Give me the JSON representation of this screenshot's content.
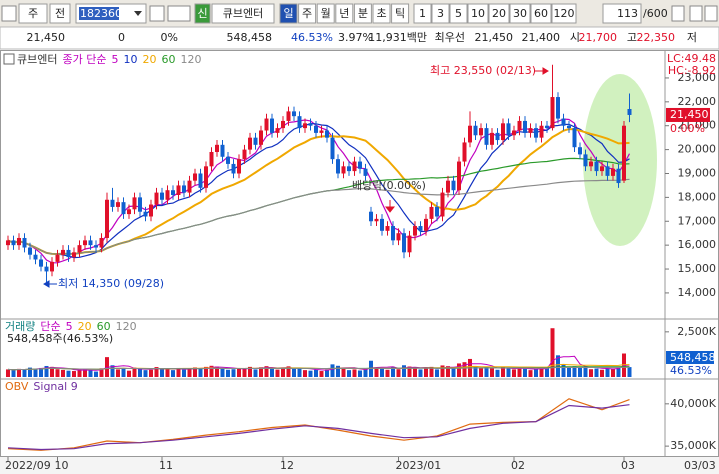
{
  "toolbar": {
    "market": "주",
    "kind": "전",
    "code": "182360",
    "flag": "신",
    "name": "큐브엔터",
    "periods": [
      "일",
      "주",
      "월",
      "년",
      "분",
      "초",
      "틱"
    ],
    "intervals": [
      1,
      3,
      5,
      10,
      20,
      30,
      60,
      120
    ],
    "count": 113,
    "max": "/600"
  },
  "quote": [
    "21,450",
    "0",
    "0%",
    "548,458",
    "46.53%",
    "3.97%",
    "11,931백만",
    "최우선",
    "21,450",
    "21,400",
    "시",
    "21,700",
    "고",
    "22,350",
    "저"
  ],
  "chart_data": [
    {
      "type": "candlestick",
      "title": "큐브엔터",
      "ma_label": "종가 단순",
      "ma_periods": [
        5,
        10,
        20,
        60,
        120
      ],
      "ma_colors": [
        "#c000c0",
        "#1030c0",
        "#f0a800",
        "#2a9a2a",
        "#8a8a8a"
      ],
      "up_color": "#e0102a",
      "down_color": "#1060d0",
      "open": [
        16000,
        16200,
        16000,
        16300,
        15900,
        15600,
        15400,
        15100,
        14900,
        15300,
        15600,
        15800,
        15500,
        15700,
        16000,
        16200,
        16000,
        15900,
        16300,
        17900,
        17600,
        17800,
        17300,
        17500,
        18000,
        17400,
        17200,
        17700,
        18200,
        17900,
        18300,
        18100,
        18500,
        18200,
        18700,
        19000,
        18400,
        19300,
        19900,
        20200,
        19700,
        19400,
        19000,
        19600,
        20000,
        20500,
        20200,
        20800,
        21300,
        20700,
        20900,
        21200,
        21600,
        21400,
        20900,
        21100,
        21000,
        20700,
        20800,
        20500,
        19600,
        19000,
        19300,
        19100,
        19500,
        19200,
        17400,
        17000,
        17100,
        16600,
        16800,
        16200,
        16500,
        15700,
        16400,
        16800,
        16600,
        17100,
        17600,
        17200,
        18200,
        18700,
        18300,
        19500,
        20300,
        21000,
        20600,
        20900,
        20200,
        20700,
        20400,
        21100,
        20600,
        20800,
        21200,
        20700,
        20900,
        20500,
        21000,
        20900,
        22200,
        21300,
        21000,
        20900,
        20100,
        19800,
        19300,
        19500,
        19100,
        19300,
        18900,
        19200,
        18700,
        21700
      ],
      "high": [
        16400,
        16400,
        16500,
        16500,
        16100,
        15800,
        15600,
        15300,
        15500,
        15800,
        16000,
        16000,
        15900,
        16200,
        16400,
        16400,
        16200,
        16500,
        18200,
        18400,
        18000,
        18000,
        17700,
        18200,
        18200,
        17600,
        17900,
        18400,
        18400,
        18500,
        18500,
        18700,
        18700,
        18900,
        19200,
        19200,
        19500,
        20100,
        20400,
        20400,
        19900,
        19600,
        19800,
        20200,
        20700,
        20700,
        21000,
        21500,
        21500,
        21100,
        21400,
        21800,
        21800,
        21600,
        21300,
        21300,
        21200,
        21000,
        21000,
        20700,
        19800,
        19500,
        19500,
        19700,
        19700,
        19400,
        17600,
        17300,
        17300,
        17000,
        17000,
        16700,
        16700,
        16600,
        17000,
        17000,
        17300,
        17800,
        17800,
        18400,
        18900,
        18900,
        19700,
        20500,
        21600,
        21200,
        21100,
        21100,
        20900,
        20900,
        21300,
        21300,
        21000,
        21400,
        21400,
        21100,
        21100,
        21200,
        21200,
        23550,
        22400,
        21500,
        21200,
        21100,
        20300,
        20000,
        19700,
        19700,
        19500,
        19500,
        19400,
        19400,
        21200,
        22350
      ],
      "low": [
        15800,
        15800,
        15800,
        15700,
        15400,
        15200,
        14900,
        14350,
        14700,
        15100,
        15400,
        15300,
        15300,
        15500,
        15800,
        15800,
        15700,
        15700,
        16100,
        17400,
        17400,
        17100,
        17100,
        17300,
        17200,
        17000,
        17000,
        17500,
        17700,
        17700,
        17900,
        17900,
        18000,
        18000,
        18500,
        18200,
        18200,
        19100,
        19700,
        19500,
        19200,
        18800,
        18800,
        19400,
        19800,
        20000,
        20000,
        20600,
        20500,
        20500,
        20700,
        21000,
        21200,
        20700,
        20700,
        20800,
        20500,
        20500,
        20300,
        19400,
        18800,
        18800,
        18900,
        18900,
        19000,
        18700,
        16800,
        16800,
        16400,
        16400,
        16000,
        16000,
        15450,
        15500,
        16200,
        16400,
        16400,
        16900,
        17000,
        17000,
        18000,
        18100,
        18100,
        19300,
        20100,
        20400,
        20400,
        20000,
        20000,
        20200,
        20200,
        20400,
        20400,
        20600,
        20500,
        20500,
        20300,
        20300,
        20700,
        20800,
        21100,
        20800,
        20700,
        19900,
        19600,
        19100,
        19100,
        18900,
        18900,
        18700,
        18700,
        18400,
        18600,
        21150
      ],
      "close": [
        16200,
        16000,
        16300,
        15900,
        15600,
        15400,
        15100,
        14900,
        15300,
        15600,
        15800,
        15500,
        15700,
        16000,
        16200,
        16000,
        15900,
        16300,
        17900,
        17600,
        17800,
        17300,
        17500,
        18000,
        17400,
        17200,
        17700,
        18200,
        17900,
        18300,
        18100,
        18500,
        18200,
        18700,
        19000,
        18400,
        19300,
        19900,
        20200,
        19700,
        19400,
        19000,
        19600,
        20000,
        20500,
        20200,
        20800,
        21300,
        20700,
        20900,
        21200,
        21600,
        21400,
        20900,
        21100,
        21000,
        20700,
        20800,
        20500,
        19600,
        19000,
        19300,
        19100,
        19500,
        19200,
        18900,
        17000,
        17100,
        16600,
        16800,
        16200,
        16500,
        15700,
        16400,
        16800,
        16600,
        17100,
        17600,
        17200,
        18200,
        18700,
        18300,
        19500,
        20300,
        21000,
        20600,
        20900,
        20200,
        20700,
        20400,
        21100,
        20600,
        20800,
        21200,
        20700,
        20900,
        20500,
        21000,
        20900,
        22200,
        21300,
        21000,
        20900,
        20100,
        19800,
        19300,
        19500,
        19100,
        19300,
        18900,
        19200,
        18600,
        21000,
        21450
      ],
      "ylim": [
        12950,
        24170
      ],
      "yticks": [
        {
          "value": 23000,
          "label": "23,000"
        },
        {
          "value": 22000,
          "label": "22,000"
        },
        {
          "value": 21000,
          "label": "21,000"
        },
        {
          "value": 20000,
          "label": "20,000"
        },
        {
          "value": 19000,
          "label": "19,000"
        },
        {
          "value": 18000,
          "label": "18,000"
        },
        {
          "value": 17000,
          "label": "17,000"
        },
        {
          "value": 16000,
          "label": "16,000"
        },
        {
          "value": 15000,
          "label": "15,000"
        },
        {
          "value": 14000,
          "label": "14,000"
        }
      ],
      "corner_labels": [
        "LC:49.48",
        "HC:-8.92"
      ],
      "last_label": "21,450",
      "change_label": "0.00%",
      "annotations": [
        "최고 23,550 (02/13)",
        "최저 14,350 (09/28)",
        "배당락(0.00%)"
      ]
    },
    {
      "type": "bar",
      "title": "거래량",
      "ma_label": "단순",
      "ma_periods": [
        5,
        20,
        60,
        120
      ],
      "ma_colors": [
        "#c000c0",
        "#f0a800",
        "#2a9a2a",
        "#8a8a8a"
      ],
      "subtitle": "548,458주(46.53%)",
      "values": [
        420000,
        380000,
        450000,
        400000,
        520000,
        470000,
        500000,
        610000,
        560000,
        430000,
        390000,
        350000,
        330000,
        410000,
        450000,
        360000,
        300000,
        480000,
        1100000,
        650000,
        420000,
        460000,
        350000,
        520000,
        470000,
        380000,
        400000,
        550000,
        420000,
        460000,
        380000,
        500000,
        410000,
        470000,
        530000,
        480000,
        560000,
        620000,
        580000,
        450000,
        400000,
        430000,
        470000,
        500000,
        560000,
        420000,
        540000,
        600000,
        520000,
        410000,
        480000,
        590000,
        450000,
        500000,
        380000,
        350000,
        400000,
        330000,
        420000,
        700000,
        620000,
        450000,
        380000,
        420000,
        360000,
        440000,
        900000,
        520000,
        480000,
        400000,
        560000,
        430000,
        650000,
        580000,
        500000,
        420000,
        480000,
        560000,
        420000,
        640000,
        600000,
        470000,
        750000,
        820000,
        1000000,
        600000,
        480000,
        550000,
        470000,
        400000,
        560000,
        480000,
        420000,
        500000,
        460000,
        380000,
        430000,
        520000,
        480000,
        2700000,
        1200000,
        700000,
        520000,
        600000,
        540000,
        580000,
        430000,
        470000,
        400000,
        480000,
        440000,
        560000,
        1300000,
        548458
      ],
      "ylim": [
        0,
        3100000
      ],
      "yticks": [
        {
          "value": 2500000,
          "label": "2,500K"
        }
      ],
      "last_label": "548,458",
      "pct_label": "46.53%"
    },
    {
      "type": "line",
      "series": [
        {
          "name": "OBV",
          "color": "#e06a10",
          "x": [
            0,
            6,
            12,
            18,
            24,
            30,
            36,
            42,
            48,
            54,
            60,
            66,
            72,
            78,
            84,
            90,
            96,
            102,
            108,
            113
          ],
          "values": [
            34700000,
            34500000,
            34800000,
            35600000,
            35400000,
            35800000,
            36300000,
            36700000,
            37200000,
            37500000,
            36900000,
            36200000,
            35700000,
            36200000,
            37600000,
            37800000,
            37900000,
            40600000,
            39300000,
            40500000
          ]
        },
        {
          "name": "Signal 9",
          "color": "#7030a0",
          "x": [
            0,
            6,
            12,
            18,
            24,
            30,
            36,
            42,
            48,
            54,
            60,
            66,
            72,
            78,
            84,
            90,
            96,
            102,
            108,
            113
          ],
          "values": [
            34800000,
            34600000,
            34700000,
            35300000,
            35400000,
            35700000,
            36100000,
            36500000,
            37000000,
            37400000,
            37100000,
            36500000,
            36000000,
            36100000,
            37100000,
            37700000,
            37900000,
            39800000,
            39500000,
            39900000
          ]
        }
      ],
      "ylim": [
        33950000,
        42700000
      ],
      "yticks": [
        {
          "value": 40000000,
          "label": "40,000K"
        },
        {
          "value": 35000000,
          "label": "35,000K"
        }
      ],
      "xticks": [
        {
          "value": 0,
          "label": "2022/09"
        },
        {
          "value": 9,
          "label": "10"
        },
        {
          "value": 28,
          "label": "11"
        },
        {
          "value": 50,
          "label": "12"
        },
        {
          "value": 71,
          "label": "2023/01"
        },
        {
          "value": 92,
          "label": "02"
        },
        {
          "value": 112,
          "label": "03"
        }
      ],
      "current_date": "03/03"
    }
  ]
}
